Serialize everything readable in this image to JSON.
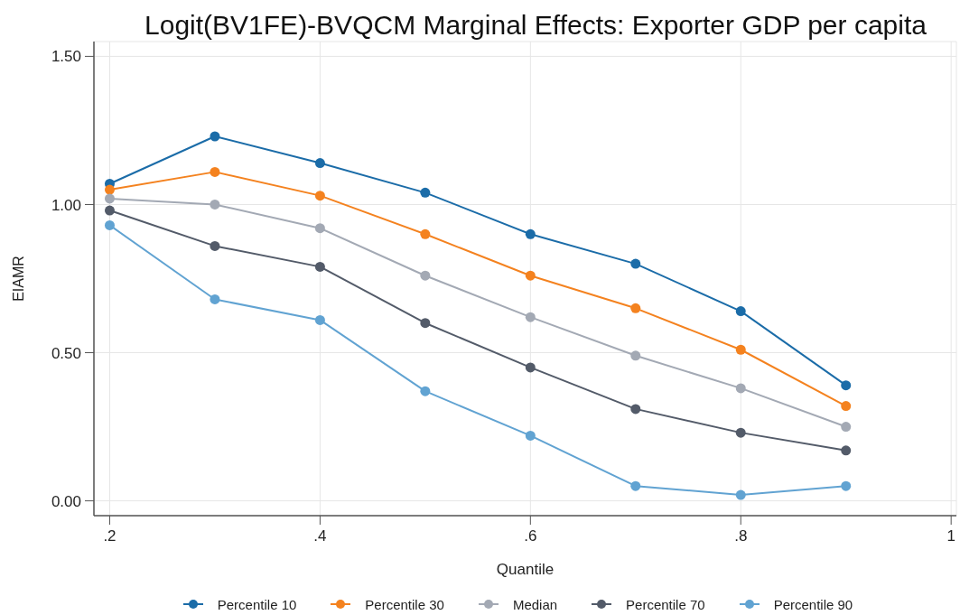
{
  "chart_data": {
    "type": "line",
    "title": "Logit(BV1FE)-BVQCM Marginal Effects: Exporter GDP per capita",
    "xlabel": "Quantile",
    "ylabel": "EIAMR",
    "x": [
      0.2,
      0.3,
      0.4,
      0.5,
      0.6,
      0.7,
      0.8,
      0.9
    ],
    "series": [
      {
        "name": "Percentile 10",
        "color": "#1b6ca8",
        "values": [
          1.07,
          1.23,
          1.14,
          1.04,
          0.9,
          0.8,
          0.64,
          0.39
        ]
      },
      {
        "name": "Percentile 30",
        "color": "#f4821f",
        "values": [
          1.05,
          1.11,
          1.03,
          0.9,
          0.76,
          0.65,
          0.51,
          0.32
        ]
      },
      {
        "name": "Median",
        "color": "#a3a9b4",
        "values": [
          1.02,
          1.0,
          0.92,
          0.76,
          0.62,
          0.49,
          0.38,
          0.25
        ]
      },
      {
        "name": "Percentile 70",
        "color": "#535b69",
        "values": [
          0.98,
          0.86,
          0.79,
          0.6,
          0.45,
          0.31,
          0.23,
          0.17
        ]
      },
      {
        "name": "Percentile 90",
        "color": "#61a3d2",
        "values": [
          0.93,
          0.68,
          0.61,
          0.37,
          0.22,
          0.05,
          0.02,
          0.05
        ]
      }
    ],
    "xlim": [
      0.185,
      1.005
    ],
    "xticks": [
      {
        "value": 0.2,
        "label": ".2"
      },
      {
        "value": 0.4,
        "label": ".4"
      },
      {
        "value": 0.6,
        "label": ".6"
      },
      {
        "value": 0.8,
        "label": ".8"
      },
      1
    ],
    "ylim": [
      -0.05,
      1.55
    ],
    "yticks": [
      {
        "value": 0,
        "label": "0.00"
      },
      {
        "value": 0.5,
        "label": "0.50"
      },
      {
        "value": 1,
        "label": "1.00"
      },
      {
        "value": 1.5,
        "label": "1.50"
      }
    ],
    "grid": true,
    "legend": "bottom",
    "marker": "circle",
    "line_style": "solid"
  }
}
